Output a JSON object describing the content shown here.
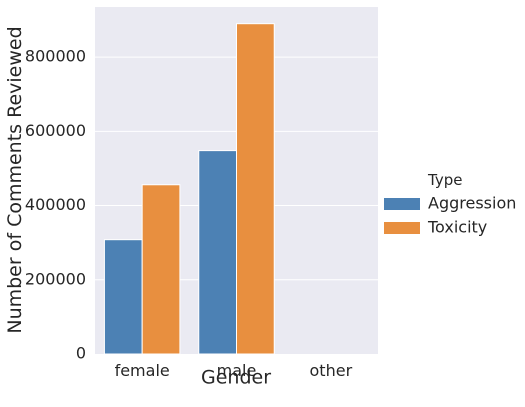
{
  "chart_data": {
    "type": "bar",
    "categories": [
      "female",
      "male",
      "other"
    ],
    "series": [
      {
        "name": "Aggression",
        "values": [
          308000,
          548000,
          0
        ],
        "color": "#4c81b4"
      },
      {
        "name": "Toxicity",
        "values": [
          456000,
          890000,
          0
        ],
        "color": "#e88f3f"
      }
    ],
    "xlabel": "Gender",
    "ylabel": "Number of Comments Reviewed",
    "ylim": [
      0,
      935000
    ],
    "yticks": [
      0,
      200000,
      400000,
      600000,
      800000
    ],
    "ytick_labels": [
      "0",
      "200000",
      "400000",
      "600000",
      "800000"
    ],
    "legend_title": "Type",
    "legend_position": "right-outside",
    "grid": true,
    "background_color": "#eaeaf2",
    "gridline_color": "#ffffff"
  }
}
